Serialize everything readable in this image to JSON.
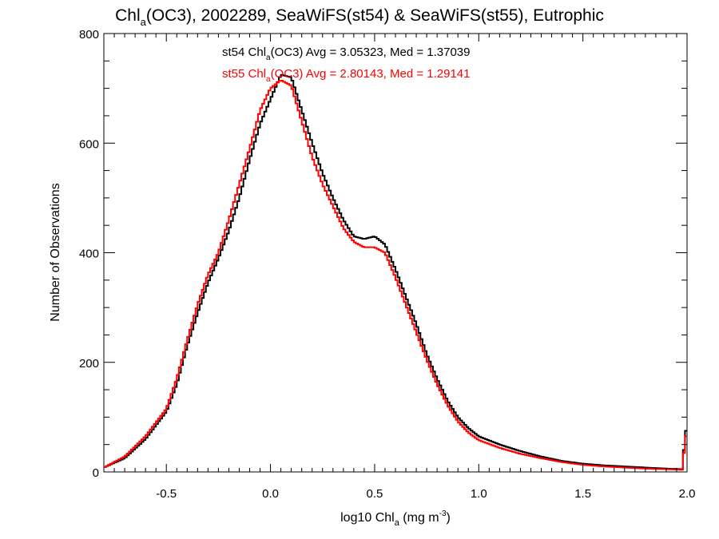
{
  "chart_data": {
    "type": "line",
    "step": true,
    "title": {
      "prefix": "Chl",
      "sub": "a",
      "suffix": "(OC3), 2002289, SeaWiFS(st54) & SeaWiFS(st55), Eutrophic"
    },
    "xlabel": {
      "prefix": "log10 Chl",
      "sub": "a",
      "mid": " (mg m",
      "sup": "-3",
      "suffix": ")"
    },
    "ylabel": "Number of Observations",
    "xlim": [
      -0.8,
      2.0
    ],
    "ylim": [
      0,
      800
    ],
    "xticks": [
      -0.5,
      0.0,
      0.5,
      1.0,
      1.5,
      2.0
    ],
    "xtick_labels": [
      "-0.5",
      "0.0",
      "0.5",
      "1.0",
      "1.5",
      "2.0"
    ],
    "yticks": [
      0,
      200,
      400,
      600,
      800
    ],
    "ytick_labels": [
      "0",
      "200",
      "400",
      "600",
      "800"
    ],
    "grid": false,
    "annotations": [
      {
        "prefix": "st54 Chl",
        "sub": "a",
        "suffix": "(OC3) Avg = 3.05323, Med = 1.37039",
        "color": "#000000"
      },
      {
        "prefix": "st55 Chl",
        "sub": "a",
        "suffix": "(OC3) Avg = 2.80143, Med = 1.29141",
        "color": "#ff0000"
      }
    ],
    "series": [
      {
        "color": "#000000",
        "points": [
          [
            -0.8,
            8
          ],
          [
            -0.7,
            25
          ],
          [
            -0.6,
            60
          ],
          [
            -0.5,
            110
          ],
          [
            -0.45,
            160
          ],
          [
            -0.4,
            230
          ],
          [
            -0.35,
            290
          ],
          [
            -0.3,
            345
          ],
          [
            -0.25,
            390
          ],
          [
            -0.2,
            440
          ],
          [
            -0.15,
            500
          ],
          [
            -0.1,
            570
          ],
          [
            -0.05,
            635
          ],
          [
            0.0,
            680
          ],
          [
            0.05,
            725
          ],
          [
            0.1,
            720
          ],
          [
            0.15,
            660
          ],
          [
            0.2,
            600
          ],
          [
            0.25,
            545
          ],
          [
            0.3,
            500
          ],
          [
            0.35,
            460
          ],
          [
            0.4,
            430
          ],
          [
            0.45,
            425
          ],
          [
            0.5,
            430
          ],
          [
            0.55,
            415
          ],
          [
            0.6,
            370
          ],
          [
            0.65,
            320
          ],
          [
            0.7,
            270
          ],
          [
            0.75,
            215
          ],
          [
            0.8,
            170
          ],
          [
            0.85,
            130
          ],
          [
            0.9,
            100
          ],
          [
            0.95,
            80
          ],
          [
            1.0,
            65
          ],
          [
            1.1,
            50
          ],
          [
            1.2,
            38
          ],
          [
            1.3,
            28
          ],
          [
            1.4,
            20
          ],
          [
            1.5,
            15
          ],
          [
            1.6,
            12
          ],
          [
            1.7,
            10
          ],
          [
            1.8,
            8
          ],
          [
            1.9,
            6
          ],
          [
            1.98,
            5
          ],
          [
            1.99,
            75
          ],
          [
            2.0,
            75
          ]
        ]
      },
      {
        "color": "#ff0000",
        "points": [
          [
            -0.8,
            8
          ],
          [
            -0.7,
            28
          ],
          [
            -0.6,
            65
          ],
          [
            -0.5,
            115
          ],
          [
            -0.45,
            170
          ],
          [
            -0.4,
            240
          ],
          [
            -0.35,
            305
          ],
          [
            -0.3,
            360
          ],
          [
            -0.25,
            400
          ],
          [
            -0.2,
            460
          ],
          [
            -0.15,
            525
          ],
          [
            -0.1,
            590
          ],
          [
            -0.05,
            660
          ],
          [
            0.0,
            700
          ],
          [
            0.05,
            715
          ],
          [
            0.1,
            705
          ],
          [
            0.15,
            640
          ],
          [
            0.2,
            575
          ],
          [
            0.25,
            525
          ],
          [
            0.3,
            485
          ],
          [
            0.35,
            445
          ],
          [
            0.4,
            420
          ],
          [
            0.45,
            410
          ],
          [
            0.5,
            410
          ],
          [
            0.55,
            400
          ],
          [
            0.6,
            355
          ],
          [
            0.65,
            305
          ],
          [
            0.7,
            255
          ],
          [
            0.75,
            205
          ],
          [
            0.8,
            160
          ],
          [
            0.85,
            122
          ],
          [
            0.9,
            92
          ],
          [
            0.95,
            72
          ],
          [
            1.0,
            58
          ],
          [
            1.1,
            44
          ],
          [
            1.2,
            33
          ],
          [
            1.3,
            25
          ],
          [
            1.4,
            18
          ],
          [
            1.5,
            13
          ],
          [
            1.6,
            10
          ],
          [
            1.7,
            8
          ],
          [
            1.8,
            6
          ],
          [
            1.9,
            5
          ],
          [
            1.98,
            4
          ],
          [
            1.99,
            65
          ],
          [
            2.0,
            65
          ]
        ]
      }
    ]
  }
}
